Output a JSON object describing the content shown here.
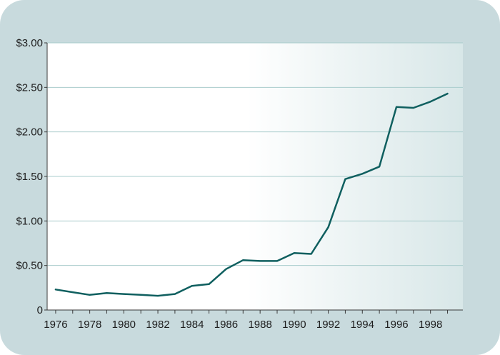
{
  "chart_data": {
    "type": "line",
    "title": "",
    "xlabel": "",
    "ylabel": "",
    "x": [
      1976,
      1977,
      1978,
      1979,
      1980,
      1981,
      1982,
      1983,
      1984,
      1985,
      1986,
      1987,
      1988,
      1989,
      1990,
      1991,
      1992,
      1993,
      1994,
      1995,
      1996,
      1997,
      1998,
      1999
    ],
    "series": [
      {
        "values": [
          0.23,
          0.2,
          0.17,
          0.19,
          0.18,
          0.17,
          0.16,
          0.18,
          0.27,
          0.29,
          0.46,
          0.56,
          0.55,
          0.55,
          0.64,
          0.63,
          0.93,
          1.47,
          1.53,
          1.61,
          2.28,
          2.27,
          2.34,
          2.43
        ]
      }
    ],
    "xlim": [
      1975.5,
      1999.9
    ],
    "ylim": [
      0,
      3.0
    ],
    "x_tick_labels": [
      "1976",
      "1978",
      "1980",
      "1982",
      "1984",
      "1986",
      "1988",
      "1990",
      "1992",
      "1994",
      "1996",
      "1998"
    ],
    "x_tick_values": [
      1976,
      1978,
      1980,
      1982,
      1984,
      1986,
      1988,
      1990,
      1992,
      1994,
      1996,
      1998
    ],
    "y_tick_labels": [
      "0",
      "$0.50",
      "$1.00",
      "$1.50",
      "$2.00",
      "$2.50",
      "$3.00"
    ],
    "y_tick_values": [
      0,
      0.5,
      1.0,
      1.5,
      2.0,
      2.5,
      3.0
    ],
    "grid": true,
    "legend": "none",
    "colors": {
      "line": "#0f5f5f",
      "frame": "#c8dadd",
      "plot_bg_left": "#ffffff",
      "plot_bg_right": "#d8e7e8",
      "grid": "#a9cccc",
      "axis": "#3a3a3a"
    }
  }
}
